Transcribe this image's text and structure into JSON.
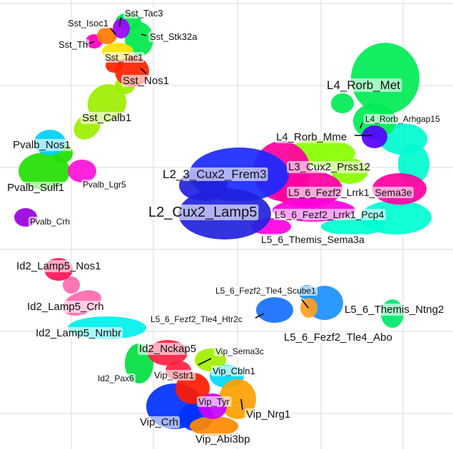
{
  "chart_data": {
    "type": "scatter",
    "title": "",
    "xlabel": "",
    "ylabel": "",
    "grid": true,
    "legend": "none",
    "clusters": [
      {
        "name": "Sst_Isoc1",
        "color": "#ff7a00"
      },
      {
        "name": "Sst_Tac3",
        "color": "#9d00ff"
      },
      {
        "name": "Sst_Th",
        "color": "#ff00bf"
      },
      {
        "name": "Sst_Stk32a",
        "color": "#00e84a"
      },
      {
        "name": "Sst_Tac1",
        "color": "#ffe100"
      },
      {
        "name": "Sst_Nos1",
        "color": "#ff2200"
      },
      {
        "name": "Sst_Calb1",
        "color": "#9dee00"
      },
      {
        "name": "Pvalb_Nos1",
        "color": "#00cfff"
      },
      {
        "name": "Pvalb_Sulf1",
        "color": "#22e000"
      },
      {
        "name": "Pvalb_Lgr5",
        "color": "#ff10d8"
      },
      {
        "name": "Pvalb_Crh",
        "color": "#9900dd"
      },
      {
        "name": "L4_Rorb_Met",
        "color": "#00ec55"
      },
      {
        "name": "L4_Rorb_Arhgap15",
        "color": "#00fad0"
      },
      {
        "name": "L4_Rorb_Mme",
        "color": "#5500ff"
      },
      {
        "name": "L2_3_Cux2_Frem3",
        "color": "#1a2aff"
      },
      {
        "name": "L3_Cux2_Prss12",
        "color": "#88ff00"
      },
      {
        "name": "L5_6_Fezf2_Lrrk1_Sema3e",
        "color": "#ff00a0"
      },
      {
        "name": "L2_Cux2_Lamp5",
        "color": "#2222dd"
      },
      {
        "name": "L5_6_Fezf2_Lrrk1_Pcp4",
        "color": "#ff00e0"
      },
      {
        "name": "L5_6_Themis_Sema3a",
        "color": "#00ffd2"
      },
      {
        "name": "Id2_Lamp5_Nos1",
        "color": "#ff1455"
      },
      {
        "name": "Id2_Lamp5_Crh",
        "color": "#ff6ab0"
      },
      {
        "name": "Id2_Lamp5_Nmbr",
        "color": "#00f0ee"
      },
      {
        "name": "L5_6_Fezf2_Tle4_Scube1",
        "color": "#ffa020"
      },
      {
        "name": "L5_6_Fezf2_Tle4_Htr2c",
        "color": "#1670ff"
      },
      {
        "name": "L5_6_Themis_Ntng2",
        "color": "#00e86a"
      },
      {
        "name": "L5_6_Fezf2_Tle4_Abo",
        "color": "#1a90ff"
      },
      {
        "name": "Id2_Nckap5",
        "color": "#ff2040"
      },
      {
        "name": "Vip_Sema3c",
        "color": "#a0f000"
      },
      {
        "name": "Id2_Pax6",
        "color": "#00e040"
      },
      {
        "name": "Vip_Sstr1",
        "color": "#ff1a00"
      },
      {
        "name": "Vip_Cbln1",
        "color": "#00d8ff"
      },
      {
        "name": "Vip_Tyr",
        "color": "#c900ff"
      },
      {
        "name": "Vip_Nrg1",
        "color": "#ffa000"
      },
      {
        "name": "Vip_Crh",
        "color": "#0030ff"
      },
      {
        "name": "Vip_Abi3bp",
        "color": "#ff8a00"
      }
    ]
  }
}
